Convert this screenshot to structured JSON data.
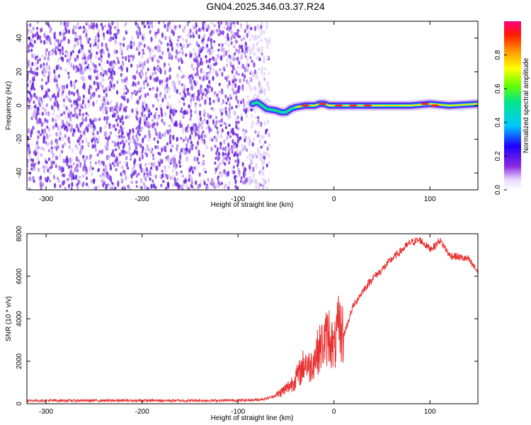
{
  "title": "GN04.2025.346.03.37.R24",
  "colors": {
    "snr_line": "#e83030",
    "axis": "#000000",
    "scatter_purple": "#7a2be0",
    "scatter_light": "#c9a6f2"
  },
  "chart_data": [
    {
      "type": "heatmap",
      "title": "",
      "xlabel": "Height of straight line (km)",
      "ylabel": "Frequency (Hz)",
      "xlim": [
        -320,
        150
      ],
      "ylim": [
        -50,
        50
      ],
      "xticks": [
        -300,
        -200,
        -100,
        0,
        100
      ],
      "yticks": [
        -40,
        -20,
        0,
        20,
        40
      ],
      "colorbar": {
        "label": "Normalized spectral amplitude",
        "range": [
          0,
          1
        ],
        "ticks": [
          "0.0",
          "0.2",
          "0.4",
          "0.6",
          "0.8"
        ],
        "colormap": "rainbow (purple → blue → cyan → green → yellow → red → magenta)"
      },
      "regions": [
        {
          "name": "noise",
          "x_range": [
            -320,
            -75
          ],
          "y_range": [
            -50,
            50
          ],
          "amplitude": "low (purple scatter)"
        },
        {
          "name": "signal_trace",
          "x_range": [
            -85,
            150
          ],
          "center_freq": [
            [
              -85,
              1
            ],
            [
              -80,
              2
            ],
            [
              -75,
              0
            ],
            [
              -70,
              -2
            ],
            [
              -60,
              -3
            ],
            [
              -55,
              -4
            ],
            [
              -50,
              -4
            ],
            [
              -45,
              -2
            ],
            [
              -40,
              -1
            ],
            [
              -30,
              0
            ],
            [
              -20,
              0
            ],
            [
              -15,
              1
            ],
            [
              -10,
              1
            ],
            [
              -5,
              0
            ],
            [
              0,
              0
            ],
            [
              20,
              0
            ],
            [
              40,
              0
            ],
            [
              60,
              0
            ],
            [
              80,
              0
            ],
            [
              100,
              1
            ],
            [
              120,
              0
            ],
            [
              150,
              1
            ]
          ],
          "amplitude": "high (green-red core)"
        }
      ]
    },
    {
      "type": "line",
      "title": "",
      "xlabel": "Height of straight line (km)",
      "ylabel": "SNR (10 * v/v)",
      "xlim": [
        -320,
        150
      ],
      "ylim": [
        0,
        8000
      ],
      "xticks": [
        -300,
        -200,
        -100,
        0,
        100
      ],
      "yticks": [
        0,
        2000,
        4000,
        6000,
        8000
      ],
      "series": [
        {
          "x": [
            -320,
            -300,
            -250,
            -200,
            -150,
            -100,
            -80,
            -70,
            -60,
            -50,
            -45,
            -40,
            -35,
            -30,
            -25,
            -20,
            -15,
            -10,
            -5,
            0,
            5,
            10,
            15,
            20,
            30,
            40,
            50,
            60,
            70,
            80,
            90,
            100,
            105,
            110,
            115,
            120,
            130,
            140,
            150
          ],
          "y": [
            150,
            150,
            150,
            150,
            150,
            160,
            180,
            250,
            400,
            700,
            900,
            1200,
            1500,
            2000,
            1700,
            2200,
            2600,
            2900,
            3300,
            2500,
            3600,
            3200,
            3900,
            4600,
            5300,
            5900,
            6300,
            6800,
            7200,
            7600,
            7700,
            7300,
            7400,
            7700,
            7400,
            7000,
            6900,
            6800,
            6200
          ]
        }
      ]
    }
  ]
}
